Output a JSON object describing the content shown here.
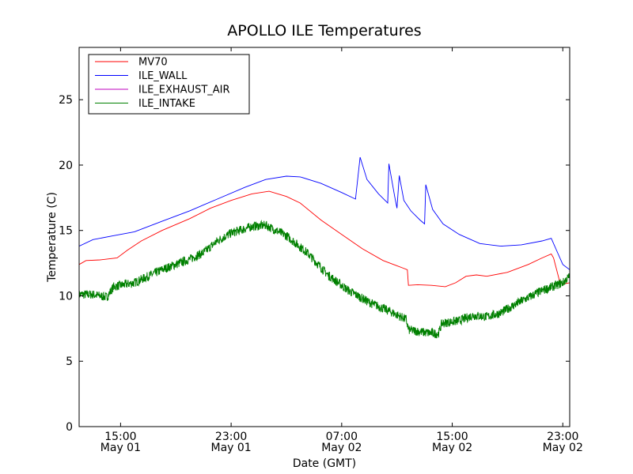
{
  "chart_data": {
    "type": "line",
    "title": "APOLLO ILE Temperatures",
    "xlabel": "Date (GMT)",
    "ylabel": "Temperature (C)",
    "xlim": [
      "2012-05-01 12:00",
      "2012-05-02 23:30"
    ],
    "ylim": [
      0,
      29
    ],
    "x_ticks": [
      {
        "t": "2012-05-01 15:00",
        "time": "15:00",
        "date": "May 01"
      },
      {
        "t": "2012-05-01 23:00",
        "time": "23:00",
        "date": "May 01"
      },
      {
        "t": "2012-05-02 07:00",
        "time": "07:00",
        "date": "May 02"
      },
      {
        "t": "2012-05-02 15:00",
        "time": "15:00",
        "date": "May 02"
      },
      {
        "t": "2012-05-02 23:00",
        "time": "23:00",
        "date": "May 02"
      }
    ],
    "y_ticks": [
      0,
      5,
      10,
      15,
      20,
      25
    ],
    "grid": false,
    "legend_position": "top-left",
    "series": [
      {
        "name": "MV70",
        "color": "#ff0000",
        "points": [
          [
            "2012-05-01 12:00",
            12.4
          ],
          [
            "2012-05-01 12:30",
            12.7
          ],
          [
            "2012-05-01 13:30",
            12.75
          ],
          [
            "2012-05-01 14:45",
            12.9
          ],
          [
            "2012-05-01 15:30",
            13.5
          ],
          [
            "2012-05-01 16:30",
            14.2
          ],
          [
            "2012-05-01 18:00",
            15.0
          ],
          [
            "2012-05-01 20:00",
            15.9
          ],
          [
            "2012-05-01 21:30",
            16.7
          ],
          [
            "2012-05-01 23:00",
            17.3
          ],
          [
            "2012-05-02 00:30",
            17.8
          ],
          [
            "2012-05-02 01:45",
            18.0
          ],
          [
            "2012-05-02 03:00",
            17.6
          ],
          [
            "2012-05-02 04:00",
            17.1
          ],
          [
            "2012-05-02 05:30",
            15.8
          ],
          [
            "2012-05-02 07:00",
            14.7
          ],
          [
            "2012-05-02 08:30",
            13.6
          ],
          [
            "2012-05-02 10:00",
            12.7
          ],
          [
            "2012-05-02 11:00",
            12.3
          ],
          [
            "2012-05-02 11:45",
            12.0
          ],
          [
            "2012-05-02 11:50",
            10.8
          ],
          [
            "2012-05-02 12:30",
            10.85
          ],
          [
            "2012-05-02 13:30",
            10.8
          ],
          [
            "2012-05-02 14:30",
            10.7
          ],
          [
            "2012-05-02 15:15",
            11.0
          ],
          [
            "2012-05-02 16:00",
            11.5
          ],
          [
            "2012-05-02 16:45",
            11.6
          ],
          [
            "2012-05-02 17:30",
            11.5
          ],
          [
            "2012-05-02 19:00",
            11.8
          ],
          [
            "2012-05-02 20:30",
            12.4
          ],
          [
            "2012-05-02 21:30",
            12.9
          ],
          [
            "2012-05-02 22:10",
            13.2
          ],
          [
            "2012-05-02 22:20",
            12.9
          ],
          [
            "2012-05-02 22:45",
            11.2
          ],
          [
            "2012-05-02 23:00",
            10.9
          ],
          [
            "2012-05-02 23:30",
            11.0
          ]
        ]
      },
      {
        "name": "ILE_WALL",
        "color": "#0000ff",
        "points": [
          [
            "2012-05-01 12:00",
            13.8
          ],
          [
            "2012-05-01 13:00",
            14.3
          ],
          [
            "2012-05-01 14:30",
            14.6
          ],
          [
            "2012-05-01 16:00",
            14.9
          ],
          [
            "2012-05-01 18:00",
            15.7
          ],
          [
            "2012-05-01 20:00",
            16.5
          ],
          [
            "2012-05-01 22:00",
            17.4
          ],
          [
            "2012-05-02 00:00",
            18.3
          ],
          [
            "2012-05-02 01:30",
            18.9
          ],
          [
            "2012-05-02 03:00",
            19.15
          ],
          [
            "2012-05-02 04:00",
            19.1
          ],
          [
            "2012-05-02 05:30",
            18.6
          ],
          [
            "2012-05-02 07:00",
            17.9
          ],
          [
            "2012-05-02 08:00",
            17.4
          ],
          [
            "2012-05-02 08:20",
            20.6
          ],
          [
            "2012-05-02 08:50",
            18.9
          ],
          [
            "2012-05-02 09:40",
            17.8
          ],
          [
            "2012-05-02 10:20",
            17.1
          ],
          [
            "2012-05-02 10:25",
            20.1
          ],
          [
            "2012-05-02 10:50",
            17.6
          ],
          [
            "2012-05-02 11:00",
            16.7
          ],
          [
            "2012-05-02 11:10",
            19.2
          ],
          [
            "2012-05-02 11:30",
            17.3
          ],
          [
            "2012-05-02 12:00",
            16.5
          ],
          [
            "2012-05-02 12:40",
            15.8
          ],
          [
            "2012-05-02 13:00",
            15.5
          ],
          [
            "2012-05-02 13:05",
            18.5
          ],
          [
            "2012-05-02 13:35",
            16.6
          ],
          [
            "2012-05-02 14:20",
            15.5
          ],
          [
            "2012-05-02 15:30",
            14.7
          ],
          [
            "2012-05-02 17:00",
            14.0
          ],
          [
            "2012-05-02 18:30",
            13.8
          ],
          [
            "2012-05-02 20:00",
            13.9
          ],
          [
            "2012-05-02 21:30",
            14.2
          ],
          [
            "2012-05-02 22:10",
            14.4
          ],
          [
            "2012-05-02 22:40",
            13.2
          ],
          [
            "2012-05-02 23:00",
            12.4
          ],
          [
            "2012-05-02 23:30",
            12.0
          ]
        ]
      },
      {
        "name": "ILE_EXHAUST_AIR",
        "color": "#bf00bf",
        "points": []
      },
      {
        "name": "ILE_INTAKE",
        "color": "#008000",
        "noisy": true,
        "points": [
          [
            "2012-05-01 12:00",
            10.1
          ],
          [
            "2012-05-01 13:00",
            10.1
          ],
          [
            "2012-05-01 14:00",
            9.9
          ],
          [
            "2012-05-01 14:30",
            10.7
          ],
          [
            "2012-05-01 16:00",
            11.0
          ],
          [
            "2012-05-01 18:00",
            12.0
          ],
          [
            "2012-05-01 20:00",
            12.8
          ],
          [
            "2012-05-01 21:00",
            13.3
          ],
          [
            "2012-05-01 22:00",
            14.2
          ],
          [
            "2012-05-01 23:00",
            14.8
          ],
          [
            "2012-05-02 00:30",
            15.3
          ],
          [
            "2012-05-02 01:30",
            15.4
          ],
          [
            "2012-05-02 03:00",
            14.6
          ],
          [
            "2012-05-02 04:30",
            13.3
          ],
          [
            "2012-05-02 06:00",
            11.6
          ],
          [
            "2012-05-02 07:30",
            10.4
          ],
          [
            "2012-05-02 09:00",
            9.5
          ],
          [
            "2012-05-02 10:30",
            8.8
          ],
          [
            "2012-05-02 11:40",
            8.2
          ],
          [
            "2012-05-02 11:50",
            7.4
          ],
          [
            "2012-05-02 13:00",
            7.2
          ],
          [
            "2012-05-02 14:00",
            7.1
          ],
          [
            "2012-05-02 14:15",
            7.9
          ],
          [
            "2012-05-02 15:30",
            8.1
          ],
          [
            "2012-05-02 16:30",
            8.5
          ],
          [
            "2012-05-02 17:30",
            8.4
          ],
          [
            "2012-05-02 18:30",
            8.7
          ],
          [
            "2012-05-02 20:00",
            9.6
          ],
          [
            "2012-05-02 21:30",
            10.4
          ],
          [
            "2012-05-02 23:00",
            11.0
          ],
          [
            "2012-05-02 23:30",
            11.5
          ]
        ]
      }
    ]
  }
}
